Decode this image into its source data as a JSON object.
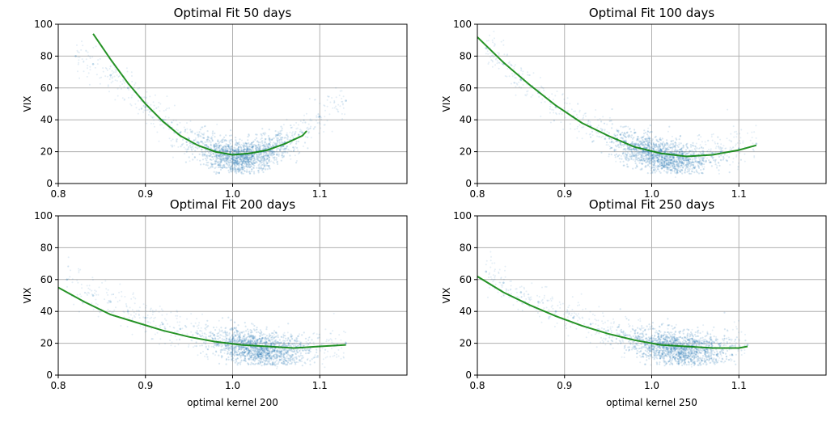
{
  "colors": {
    "scatter": "#1f77b4",
    "fit": "#008000",
    "grid": "#b0b0b0",
    "axes": "#000000",
    "background": "#ffffff"
  },
  "chart_data": [
    {
      "type": "scatter",
      "title": "Optimal Fit 50 days",
      "xlabel": "",
      "ylabel": "VIX",
      "xlim": [
        0.8,
        1.2
      ],
      "ylim": [
        0,
        100
      ],
      "xticks": [
        "0.8",
        "0.9",
        "1.0",
        "1.1"
      ],
      "yticks": [
        "0",
        "20",
        "40",
        "60",
        "80",
        "100"
      ],
      "grid": true,
      "series": [
        {
          "type": "scatter",
          "color": "#1f77b4",
          "x": [
            0.82,
            0.84,
            0.86,
            0.88,
            0.9,
            0.92,
            0.93,
            0.94,
            0.95,
            0.96,
            0.97,
            0.975,
            0.98,
            0.985,
            0.99,
            0.995,
            1.0,
            1.005,
            1.01,
            1.015,
            1.02,
            1.03,
            1.04,
            1.05,
            1.06,
            1.07,
            1.08,
            1.1,
            1.13
          ],
          "y": [
            80,
            75,
            68,
            60,
            48,
            40,
            35,
            32,
            28,
            26,
            24,
            22,
            21,
            20,
            19,
            18,
            17,
            18,
            17,
            18,
            19,
            20,
            21,
            24,
            26,
            28,
            32,
            42,
            52
          ]
        },
        {
          "type": "line",
          "color": "#008000",
          "x": [
            0.84,
            0.86,
            0.88,
            0.9,
            0.92,
            0.94,
            0.96,
            0.98,
            1.0,
            1.02,
            1.04,
            1.06,
            1.08,
            1.085
          ],
          "y": [
            94,
            78,
            63,
            50,
            39,
            30,
            24,
            20,
            18,
            19,
            21,
            25,
            30,
            33
          ]
        }
      ]
    },
    {
      "type": "scatter",
      "title": "Optimal Fit 100 days",
      "xlabel": "",
      "ylabel": "VIX",
      "xlim": [
        0.8,
        1.2
      ],
      "ylim": [
        0,
        100
      ],
      "xticks": [
        "0.8",
        "0.9",
        "1.0",
        "1.1"
      ],
      "yticks": [
        "0",
        "20",
        "40",
        "60",
        "80",
        "100"
      ],
      "grid": true,
      "series": [
        {
          "type": "scatter",
          "color": "#1f77b4",
          "x": [
            0.81,
            0.83,
            0.85,
            0.87,
            0.89,
            0.91,
            0.93,
            0.95,
            0.96,
            0.97,
            0.98,
            0.99,
            1.0,
            1.01,
            1.02,
            1.03,
            1.04,
            1.05,
            1.06,
            1.07,
            1.08,
            1.1,
            1.12
          ],
          "y": [
            85,
            75,
            65,
            57,
            48,
            42,
            36,
            30,
            28,
            26,
            24,
            22,
            20,
            19,
            18,
            17,
            16,
            17,
            18,
            19,
            20,
            22,
            25
          ]
        },
        {
          "type": "line",
          "color": "#008000",
          "x": [
            0.8,
            0.83,
            0.86,
            0.89,
            0.92,
            0.95,
            0.98,
            1.01,
            1.04,
            1.07,
            1.1,
            1.12
          ],
          "y": [
            92,
            76,
            62,
            49,
            38,
            30,
            23,
            19,
            17,
            18,
            21,
            24
          ]
        }
      ]
    },
    {
      "type": "scatter",
      "title": "Optimal Fit 200 days",
      "xlabel": "optimal kernel 200",
      "ylabel": "VIX",
      "xlim": [
        0.8,
        1.2
      ],
      "ylim": [
        0,
        100
      ],
      "xticks": [
        "0.8",
        "0.9",
        "1.0",
        "1.1"
      ],
      "yticks": [
        "0",
        "20",
        "40",
        "60",
        "80",
        "100"
      ],
      "grid": true,
      "series": [
        {
          "type": "scatter",
          "color": "#1f77b4",
          "x": [
            0.81,
            0.84,
            0.86,
            0.88,
            0.9,
            0.92,
            0.94,
            0.96,
            0.98,
            1.0,
            1.02,
            1.04,
            1.06,
            1.08,
            1.1,
            1.12,
            1.13
          ],
          "y": [
            60,
            50,
            46,
            40,
            36,
            32,
            29,
            26,
            23,
            21,
            19,
            17,
            16,
            17,
            18,
            19,
            20
          ]
        },
        {
          "type": "line",
          "color": "#008000",
          "x": [
            0.8,
            0.83,
            0.86,
            0.89,
            0.92,
            0.95,
            0.98,
            1.01,
            1.04,
            1.07,
            1.1,
            1.13
          ],
          "y": [
            55,
            46,
            38,
            33,
            28,
            24,
            21,
            19,
            18,
            17,
            18,
            19
          ]
        }
      ]
    },
    {
      "type": "scatter",
      "title": "Optimal Fit 250 days",
      "xlabel": "optimal kernel 250",
      "ylabel": "VIX",
      "xlim": [
        0.8,
        1.2
      ],
      "ylim": [
        0,
        100
      ],
      "xticks": [
        "0.8",
        "0.9",
        "1.0",
        "1.1"
      ],
      "yticks": [
        "0",
        "20",
        "40",
        "60",
        "80",
        "100"
      ],
      "grid": true,
      "series": [
        {
          "type": "scatter",
          "color": "#1f77b4",
          "x": [
            0.81,
            0.83,
            0.85,
            0.87,
            0.89,
            0.91,
            0.93,
            0.95,
            0.97,
            0.99,
            1.01,
            1.03,
            1.05,
            1.07,
            1.09,
            1.11
          ],
          "y": [
            65,
            58,
            52,
            46,
            40,
            36,
            32,
            28,
            25,
            22,
            20,
            18,
            17,
            17,
            18,
            19
          ]
        },
        {
          "type": "line",
          "color": "#008000",
          "x": [
            0.8,
            0.83,
            0.86,
            0.89,
            0.92,
            0.95,
            0.98,
            1.01,
            1.04,
            1.07,
            1.1,
            1.11
          ],
          "y": [
            62,
            52,
            44,
            37,
            31,
            26,
            22,
            19,
            18,
            17,
            17,
            18
          ]
        }
      ]
    }
  ]
}
